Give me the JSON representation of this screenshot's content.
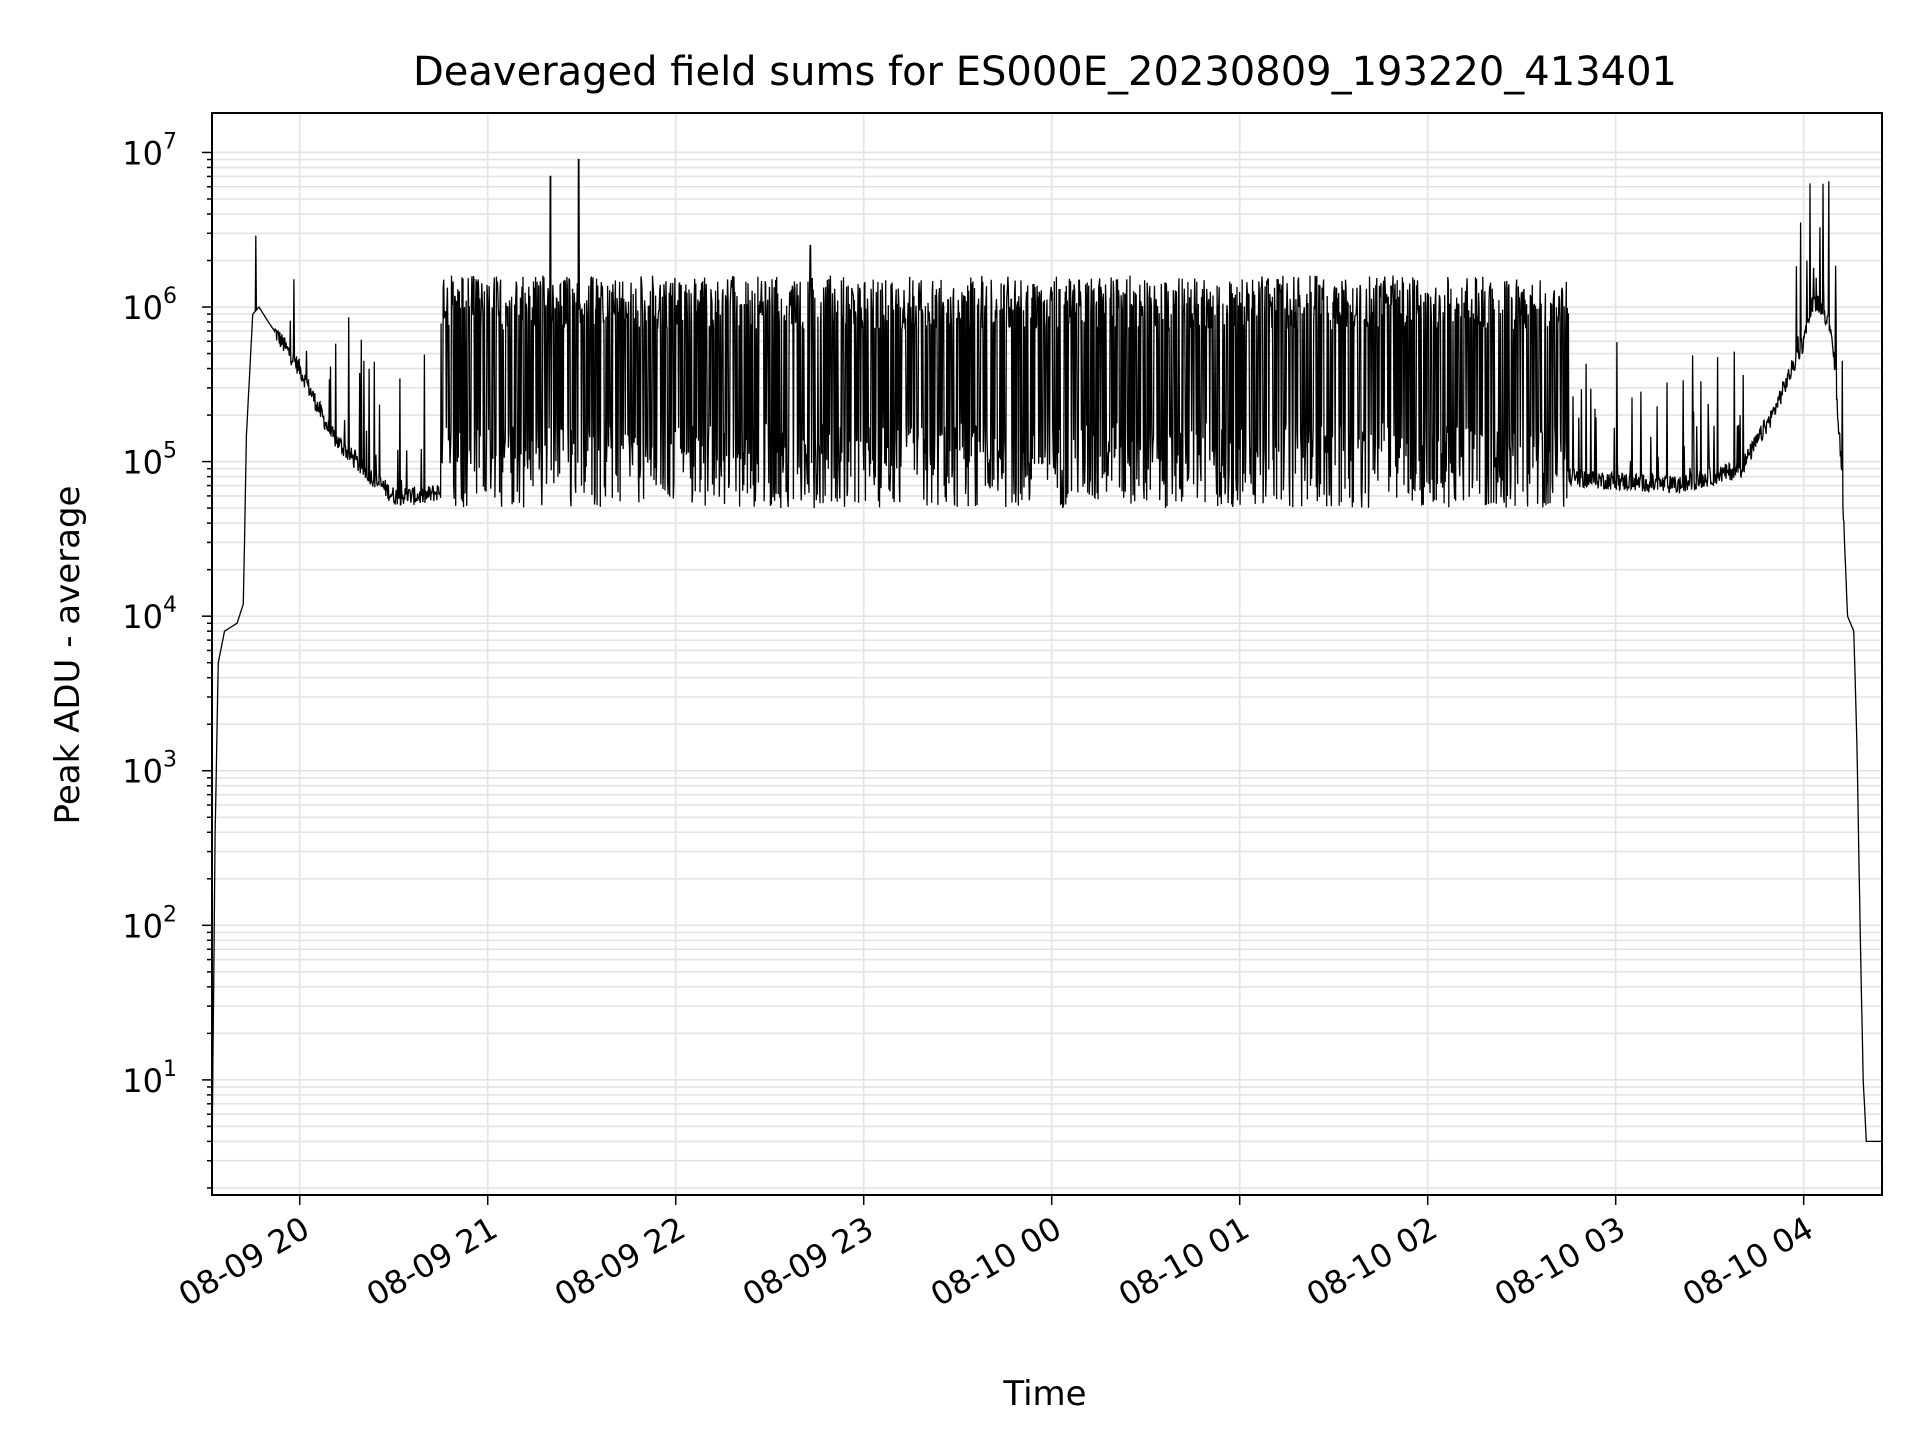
{
  "chart_data": {
    "type": "line",
    "title": "Deaveraged field sums for ES000E_20230809_193220_413401",
    "xlabel": "Time",
    "ylabel": "Peak ADU - average",
    "yscale": "log",
    "ylim": [
      1.8,
      18000000
    ],
    "xlim": [
      "2023-08-09 19:32",
      "2023-08-10 04:25"
    ],
    "grid": true,
    "grid_minor": true,
    "x_ticks": [
      "2023-08-09 20:00",
      "2023-08-09 21:00",
      "2023-08-09 22:00",
      "2023-08-09 23:00",
      "2023-08-10 00:00",
      "2023-08-10 01:00",
      "2023-08-10 02:00",
      "2023-08-10 03:00",
      "2023-08-10 04:00"
    ],
    "x_tick_labels": [
      "08-09 20",
      "08-09 21",
      "08-09 22",
      "08-09 23",
      "08-10 00",
      "08-10 01",
      "08-10 02",
      "08-10 03",
      "08-10 04"
    ],
    "y_tick_labels": [
      {
        "value": 10,
        "base": "10",
        "exp": "1"
      },
      {
        "value": 100,
        "base": "10",
        "exp": "2"
      },
      {
        "value": 1000,
        "base": "10",
        "exp": "3"
      },
      {
        "value": 10000,
        "base": "10",
        "exp": "4"
      },
      {
        "value": 100000,
        "base": "10",
        "exp": "5"
      },
      {
        "value": 1000000,
        "base": "10",
        "exp": "6"
      },
      {
        "value": 10000000,
        "base": "10",
        "exp": "7"
      }
    ],
    "series": [
      {
        "color": "#000000",
        "baseline_envelope": {
          "x": [
            "2023-08-09 19:32",
            "2023-08-09 19:33",
            "2023-08-09 19:34",
            "2023-08-09 19:36",
            "2023-08-09 19:40",
            "2023-08-09 19:42",
            "2023-08-09 19:43",
            "2023-08-09 19:45",
            "2023-08-09 19:47",
            "2023-08-09 19:50",
            "2023-08-09 20:00",
            "2023-08-09 20:10",
            "2023-08-09 20:20",
            "2023-08-09 20:30",
            "2023-08-09 20:40",
            "2023-08-09 20:50",
            "2023-08-09 21:00",
            "2023-08-09 21:30",
            "2023-08-09 22:00",
            "2023-08-09 23:00",
            "2023-08-10 00:00",
            "2023-08-10 01:00",
            "2023-08-10 02:00",
            "2023-08-10 02:20",
            "2023-08-10 02:40",
            "2023-08-10 03:00",
            "2023-08-10 03:20",
            "2023-08-10 03:40",
            "2023-08-10 03:50",
            "2023-08-10 04:00",
            "2023-08-10 04:03",
            "2023-08-10 04:06",
            "2023-08-10 04:09",
            "2023-08-10 04:12",
            "2023-08-10 04:14",
            "2023-08-10 04:16",
            "2023-08-10 04:17",
            "2023-08-10 04:18",
            "2023-08-10 04:19",
            "2023-08-10 04:20",
            "2023-08-10 04:25"
          ],
          "y": [
            3,
            400,
            5000,
            8000,
            9000,
            12000,
            150000,
            900000,
            1000000,
            800000,
            400000,
            150000,
            90000,
            60000,
            60000,
            70000,
            70000,
            80000,
            90000,
            100000,
            100000,
            100000,
            100000,
            90000,
            80000,
            75000,
            70000,
            90000,
            200000,
            600000,
            1100000,
            1000000,
            700000,
            100000,
            10000,
            8000,
            1500,
            100,
            10,
            4,
            4
          ]
        },
        "spikes": [
          {
            "x": "2023-08-09 21:20",
            "y": 7000000
          },
          {
            "x": "2023-08-09 21:29",
            "y": 9000000
          },
          {
            "x": "2023-08-09 22:43",
            "y": 2500000
          },
          {
            "x": "2023-08-09 19:46",
            "y": 2900000
          },
          {
            "x": "2023-08-10 04:01",
            "y": 2000000
          }
        ],
        "approx_band": {
          "x_from": "2023-08-09 20:45",
          "x_to": "2023-08-10 02:45",
          "y_low": 50000,
          "y_high": 1600000
        }
      }
    ]
  }
}
